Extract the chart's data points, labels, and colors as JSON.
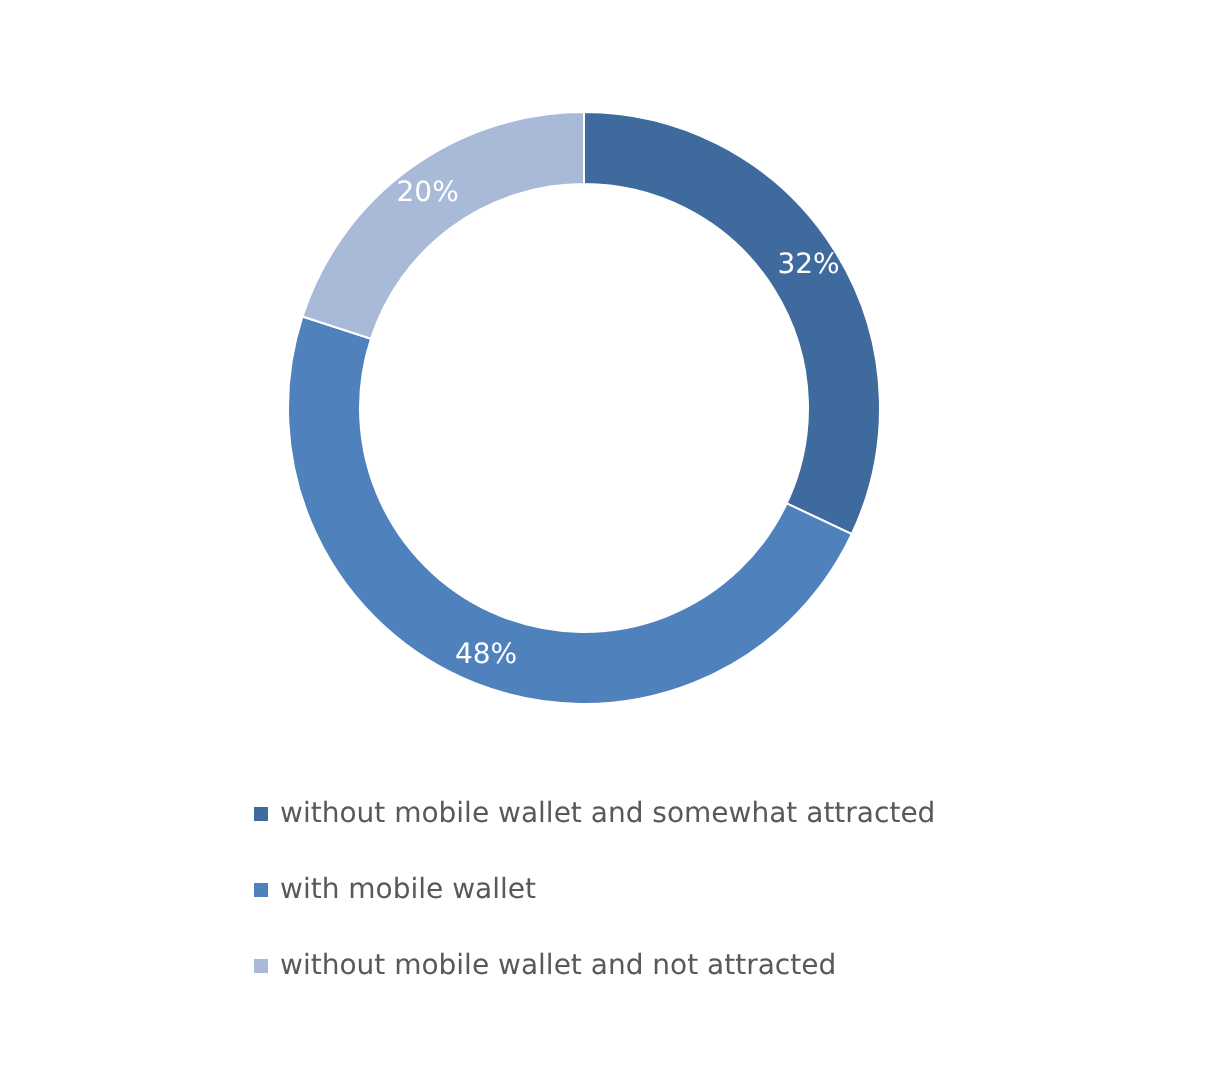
{
  "chart_data": {
    "type": "donut",
    "categories": [
      "without mobile wallet and somewhat attracted",
      "with mobile wallet",
      "without mobile wallet and not attracted"
    ],
    "values": [
      32,
      48,
      20
    ],
    "colors": [
      "#3e6a9e",
      "#4f81bd",
      "#a9bad8"
    ],
    "value_labels": [
      "32%",
      "48%",
      "20%"
    ],
    "legend": "bottom"
  }
}
